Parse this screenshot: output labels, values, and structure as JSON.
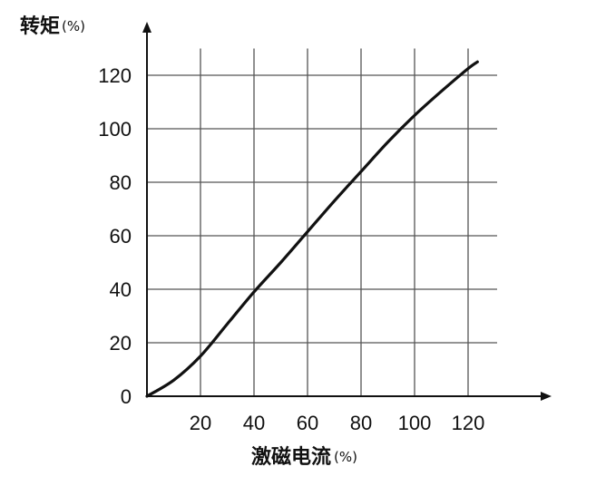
{
  "chart_data": {
    "type": "line",
    "title": "",
    "xlabel": "激磁电流",
    "xunit": "(%)",
    "ylabel": "转矩",
    "yunit": "(%)",
    "xlim": [
      0,
      130
    ],
    "ylim": [
      0,
      130
    ],
    "xticks": [
      "20",
      "40",
      "60",
      "80",
      "100",
      "120"
    ],
    "yticks": [
      "0",
      "20",
      "40",
      "60",
      "80",
      "100",
      "120"
    ],
    "grid": true,
    "line_color": "#111111",
    "grid_color": "#555555",
    "series": [
      {
        "x": [
          0,
          10,
          20,
          30,
          40,
          50,
          60,
          70,
          80,
          90,
          100,
          110,
          120,
          123.5
        ],
        "y": [
          0,
          6,
          15,
          27,
          39,
          50,
          61.5,
          73,
          84,
          95,
          105,
          114,
          122.5,
          125
        ]
      }
    ]
  }
}
